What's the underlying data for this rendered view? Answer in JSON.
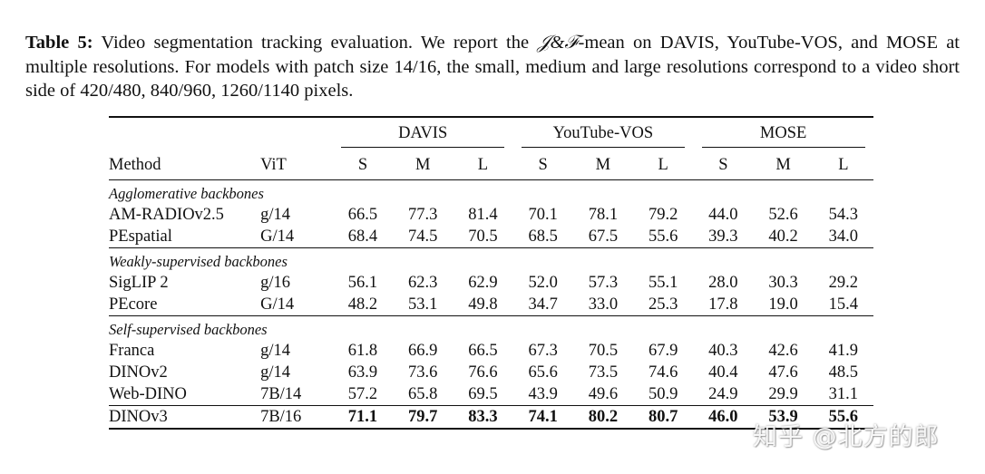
{
  "caption": {
    "label": "Table 5:",
    "text_a": " Video segmentation tracking evaluation. We report the ",
    "metric": "𝒥&ℱ",
    "text_b": "-mean on DAVIS, YouTube-VOS, and MOSE at multiple resolutions. For models with patch size 14/16, the small, medium and large resolutions correspond to a video short side of 420/480, 840/960, 1260/1140 pixels."
  },
  "table": {
    "groups": [
      "DAVIS",
      "YouTube-VOS",
      "MOSE"
    ],
    "col_method": "Method",
    "col_vit": "ViT",
    "subcols": [
      "S",
      "M",
      "L",
      "S",
      "M",
      "L",
      "S",
      "M",
      "L"
    ],
    "sections": [
      {
        "title": "Agglomerative backbones",
        "rows": [
          {
            "method": "AM-RADIOv2.5",
            "vit": "g/14",
            "values": [
              "66.5",
              "77.3",
              "81.4",
              "70.1",
              "78.1",
              "79.2",
              "44.0",
              "52.6",
              "54.3"
            ]
          },
          {
            "method": "PEspatial",
            "vit": "G/14",
            "values": [
              "68.4",
              "74.5",
              "70.5",
              "68.5",
              "67.5",
              "55.6",
              "39.3",
              "40.2",
              "34.0"
            ]
          }
        ]
      },
      {
        "title": "Weakly-supervised backbones",
        "rows": [
          {
            "method": "SigLIP 2",
            "vit": "g/16",
            "values": [
              "56.1",
              "62.3",
              "62.9",
              "52.0",
              "57.3",
              "55.1",
              "28.0",
              "30.3",
              "29.2"
            ]
          },
          {
            "method": "PEcore",
            "vit": "G/14",
            "values": [
              "48.2",
              "53.1",
              "49.8",
              "34.7",
              "33.0",
              "25.3",
              "17.8",
              "19.0",
              "15.4"
            ]
          }
        ]
      },
      {
        "title": "Self-supervised backbones",
        "rows": [
          {
            "method": "Franca",
            "vit": "g/14",
            "values": [
              "61.8",
              "66.9",
              "66.5",
              "67.3",
              "70.5",
              "67.9",
              "40.3",
              "42.6",
              "41.9"
            ]
          },
          {
            "method": "DINOv2",
            "vit": "g/14",
            "values": [
              "63.9",
              "73.6",
              "76.6",
              "65.6",
              "73.5",
              "74.6",
              "40.4",
              "47.6",
              "48.5"
            ]
          },
          {
            "method": "Web-DINO",
            "vit": "7B/14",
            "values": [
              "57.2",
              "65.8",
              "69.5",
              "43.9",
              "49.6",
              "50.9",
              "24.9",
              "29.9",
              "31.1"
            ]
          }
        ]
      }
    ],
    "final_row": {
      "method": "DINOv3",
      "vit": "7B/16",
      "values": [
        "71.1",
        "79.7",
        "83.3",
        "74.1",
        "80.2",
        "80.7",
        "46.0",
        "53.9",
        "55.6"
      ]
    }
  },
  "watermark": "知乎 @北方的郎"
}
